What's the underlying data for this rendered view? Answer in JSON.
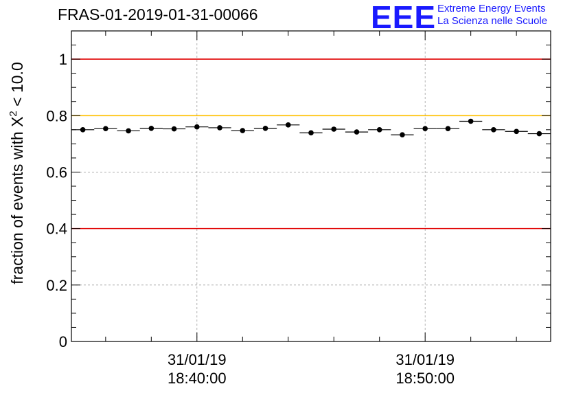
{
  "header": {
    "title": "FRAS-01-2019-01-31-00066",
    "logo_mark": "EEE",
    "logo_line1": "Extreme Energy Events",
    "logo_line2": "La Scienza nelle Scuole"
  },
  "colors": {
    "axis": "#000000",
    "grid": "#a0a0a0",
    "red_line": "#e00000",
    "yellow_line": "#ffc000",
    "marker": "#000000",
    "logo": "#1a1aff"
  },
  "chart_data": {
    "type": "scatter",
    "title": "FRAS-01-2019-01-31-00066",
    "xlabel": "",
    "ylabel_prefix": "fraction of events with ",
    "ylabel_symbol": "X",
    "ylabel_superscript": "2",
    "ylabel_suffix": " < 10.0",
    "ylim": [
      0,
      1.1
    ],
    "yticks": [
      0,
      0.2,
      0.4,
      0.6,
      0.8,
      1
    ],
    "ytick_labels": [
      "0",
      "0.2",
      "0.4",
      "0.6",
      "0.8",
      "1"
    ],
    "x_unit": "minutes after 18:30:00",
    "xlim": [
      24.5,
      45.5
    ],
    "xticks": [
      30,
      40
    ],
    "xtick_labels": [
      {
        "date": "31/01/19",
        "time": "18:40:00"
      },
      {
        "date": "31/01/19",
        "time": "18:50:00"
      }
    ],
    "minor_xticks": [
      26,
      28,
      30,
      32,
      34,
      36,
      38,
      40,
      42,
      44
    ],
    "grid": true,
    "reference_lines": [
      {
        "y": 1.0,
        "color": "red"
      },
      {
        "y": 0.8,
        "color": "yellow"
      },
      {
        "y": 0.4,
        "color": "red"
      }
    ],
    "bin_width": 1,
    "x": [
      25,
      26,
      27,
      28,
      29,
      30,
      31,
      32,
      33,
      34,
      35,
      36,
      37,
      38,
      39,
      40,
      41,
      42,
      43,
      44,
      45
    ],
    "y": [
      0.75,
      0.754,
      0.746,
      0.755,
      0.753,
      0.76,
      0.757,
      0.747,
      0.755,
      0.767,
      0.739,
      0.752,
      0.742,
      0.75,
      0.732,
      0.754,
      0.754,
      0.78,
      0.75,
      0.744,
      0.736
    ]
  }
}
